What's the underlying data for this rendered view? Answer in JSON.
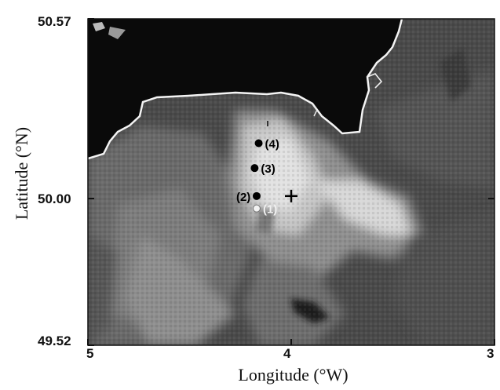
{
  "map": {
    "x_axis_label": "Longitude (°W)",
    "y_axis_label": "Latitude (°N)",
    "lat_ticks": [
      "50.57",
      "50.00",
      "49.52"
    ],
    "lon_ticks": [
      "5",
      "4",
      "3"
    ],
    "stations": [
      {
        "label": "(1)",
        "lon": 4.17,
        "lat": 49.96,
        "color": "#f2f2f2"
      },
      {
        "label": "(2)",
        "lon": 4.17,
        "lat": 50.0,
        "color": "#000000"
      },
      {
        "label": "(3)",
        "lon": 4.18,
        "lat": 50.09,
        "color": "#000000"
      },
      {
        "label": "(4)",
        "lon": 4.16,
        "lat": 50.17,
        "color": "#000000"
      }
    ],
    "marker_plus": {
      "lon": 4.0,
      "lat": 50.0
    },
    "colors": {
      "land": "#0a0a0a",
      "coastline": "#f4f4f4",
      "sea_dark": "#3a3a3a",
      "plume_bright": "#e8e8e8"
    }
  }
}
